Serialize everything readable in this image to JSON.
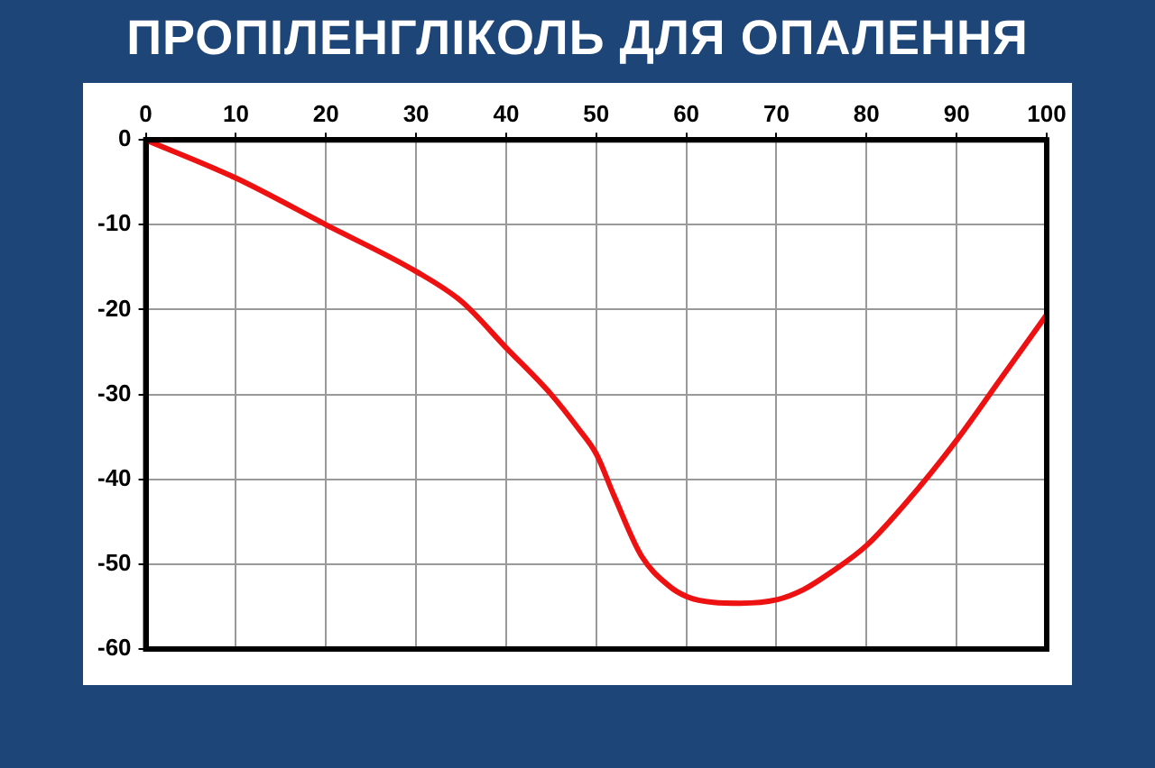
{
  "chart_data": {
    "type": "line",
    "title": "ПРОПІЛЕНГЛІКОЛЬ ДЛЯ ОПАЛЕННЯ",
    "x": [
      0,
      10,
      20,
      30,
      35,
      40,
      45,
      48,
      50,
      52,
      55,
      58,
      60,
      63,
      66,
      70,
      73,
      76,
      80,
      85,
      90,
      95,
      100
    ],
    "series": [
      {
        "color": "#ee1111",
        "values": [
          0,
          -4.5,
          -10,
          -15.5,
          -19,
          -24.5,
          -30,
          -34,
          -37,
          -42,
          -49,
          -52.5,
          -53.8,
          -54.5,
          -54.6,
          -54.2,
          -53,
          -51,
          -47.8,
          -42,
          -35.4,
          -28,
          -20.6
        ]
      }
    ],
    "xlim": [
      0,
      100
    ],
    "xticks": [
      0,
      10,
      20,
      30,
      40,
      50,
      60,
      70,
      80,
      90,
      100
    ],
    "ylim": [
      -60,
      0
    ],
    "yticks": [
      0,
      -10,
      -20,
      -30,
      -40,
      -50,
      -60
    ],
    "grid": true,
    "legend": false,
    "marker": "none",
    "line_style": "solid"
  }
}
